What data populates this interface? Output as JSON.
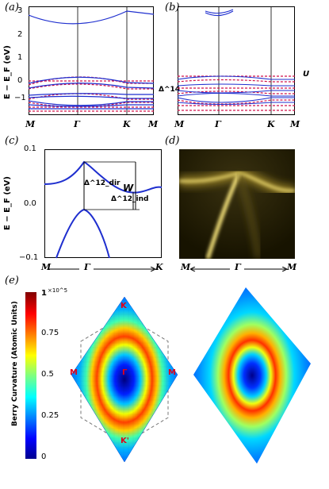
{
  "figure": {
    "panel_labels": [
      "(a)",
      "(b)",
      "(c)",
      "(d)",
      "(e)"
    ],
    "ylabel_ab": "E − E_F (eV)",
    "ylabel_c": "E − E_F (eV)",
    "kpath_ab": [
      "M",
      "Γ",
      "K",
      "M"
    ],
    "kpath_c": [
      "M",
      "Γ",
      "K"
    ],
    "kpath_d": [
      "M",
      "Γ",
      "M"
    ],
    "yticks_a": [
      "3",
      "2",
      "1",
      "0",
      "−1"
    ],
    "yticks_c": [
      "0.1",
      "0.0",
      "−0.1"
    ],
    "annot_a": "Δ^14",
    "annot_b": "U",
    "annot_c_W": "W",
    "annot_c_dir": "Δ^12_dir",
    "annot_c_ind": "Δ^12_ind",
    "colorbar_label": "Berry Curvature (Atomic Units)",
    "colorbar_ticks": [
      "1",
      "0.75",
      "0.5",
      "0.25",
      "0"
    ],
    "colorbar_exp": "×10^5",
    "bz_labels": [
      "K",
      "M",
      "Γ",
      "M",
      "K'"
    ]
  },
  "colors": {
    "band_blue": "#1f2fcf",
    "band_red_dashed": "#d0104a",
    "arpes_bg": "#171300",
    "arpes_band": "#f5e27a"
  }
}
